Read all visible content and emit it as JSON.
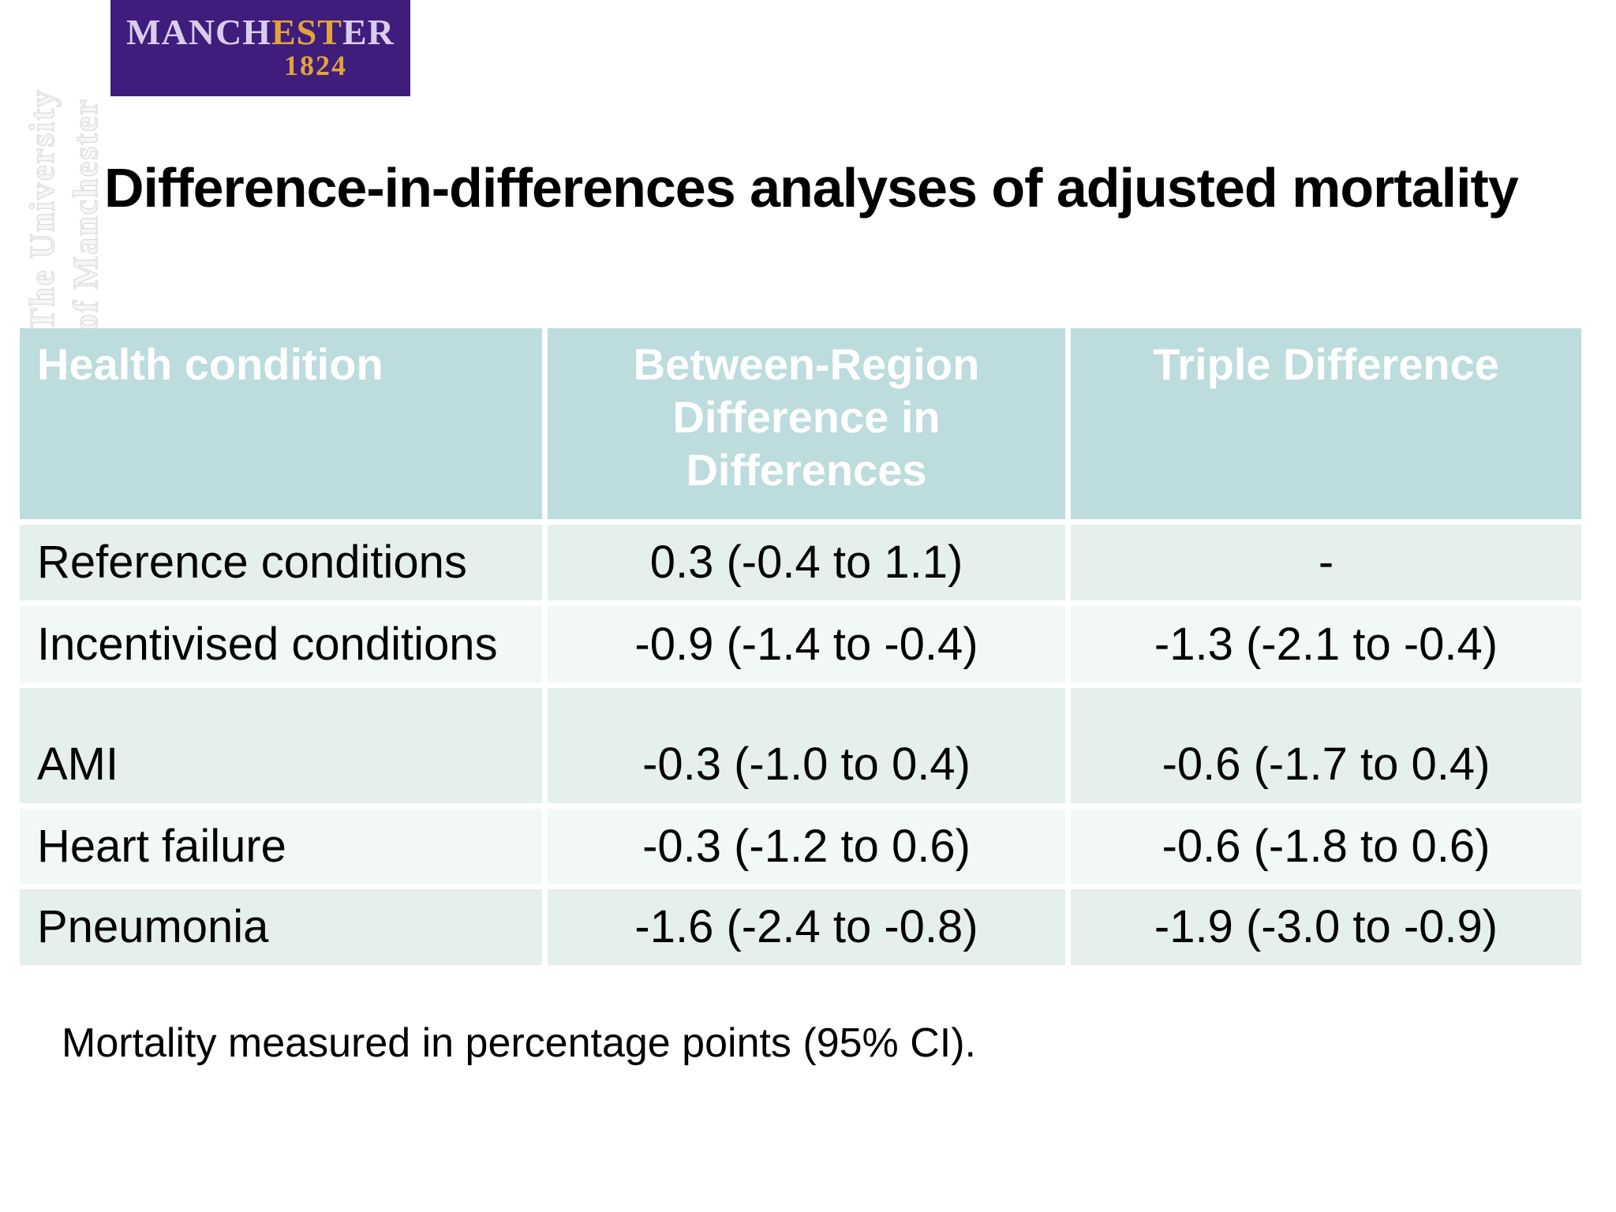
{
  "slide": {
    "title": "Difference-in-differences analyses of adjusted mortality",
    "note": "Mortality measured in percentage points (95% CI)."
  },
  "logo": {
    "alt": "University of Manchester logo",
    "wordmark_part1": "MANCH",
    "wordmark_part2": "EST",
    "wordmark_part3": "ER",
    "year": "1824"
  },
  "watermark": {
    "line1": "The University",
    "line2": "of Manchester"
  },
  "table": {
    "headers": [
      "Health condition",
      "Between-Region Difference in Differences",
      "Triple Difference"
    ],
    "rows": [
      {
        "condition": "Reference conditions",
        "did": "0.3 (-0.4 to 1.1)",
        "triple": "-"
      },
      {
        "condition": "Incentivised conditions",
        "did": "-0.9 (-1.4 to -0.4)",
        "triple": "-1.3 (-2.1 to -0.4)"
      },
      {
        "condition": "AMI",
        "did": "-0.3 (-1.0 to 0.4)",
        "triple": "-0.6 (-1.7 to 0.4)"
      },
      {
        "condition": "Heart failure",
        "did": "-0.3 (-1.2 to 0.6)",
        "triple": "-0.6 (-1.8 to 0.6)"
      },
      {
        "condition": "Pneumonia",
        "did": "-1.6 (-2.4 to -0.8)",
        "triple": "-1.9 (-3.0 to -0.9)"
      }
    ]
  },
  "colors": {
    "header_bg": "#bcdcdd",
    "row_alt_green": "#e5efed",
    "row_alt_light": "#f2f7f8",
    "logo_purple": "#3e1d7c",
    "logo_gold": "#e2a33b",
    "text": "#000000",
    "header_text": "#ffffff"
  }
}
